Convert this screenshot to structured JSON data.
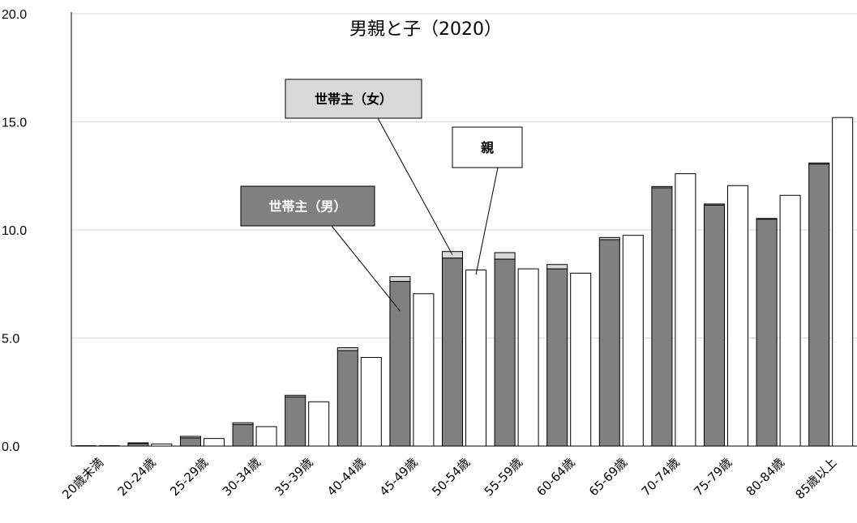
{
  "chart_data": {
    "type": "bar",
    "title": "男親と子（2020）",
    "xlabel": "",
    "ylabel": "",
    "ylim": [
      0,
      20
    ],
    "yticks": [
      "0.0",
      "5.0",
      "10.0",
      "15.0",
      "20.0"
    ],
    "grid": true,
    "categories": [
      "20歳未満",
      "20-24歳",
      "25-29歳",
      "30-34歳",
      "35-39歳",
      "40-44歳",
      "45-49歳",
      "50-54歳",
      "55-59歳",
      "60-64歳",
      "65-69歳",
      "70-74歳",
      "75-79歳",
      "80-84歳",
      "85歳以上"
    ],
    "series": [
      {
        "name": "世帯主（男）",
        "stack": "head",
        "color": "#808080",
        "values": [
          0.02,
          0.12,
          0.38,
          1.0,
          2.28,
          4.42,
          7.62,
          8.7,
          8.65,
          8.2,
          9.55,
          11.95,
          11.15,
          10.5,
          13.05
        ]
      },
      {
        "name": "世帯主（女）",
        "stack": "head",
        "color": "#d9d9d9",
        "values": [
          0.0,
          0.03,
          0.07,
          0.08,
          0.07,
          0.13,
          0.22,
          0.3,
          0.3,
          0.2,
          0.1,
          0.06,
          0.05,
          0.03,
          0.05
        ]
      },
      {
        "name": "親",
        "stack": "parent",
        "color": "#ffffff",
        "values": [
          0.02,
          0.1,
          0.35,
          0.9,
          2.05,
          4.1,
          7.05,
          8.15,
          8.2,
          8.0,
          9.75,
          12.6,
          12.05,
          11.6,
          15.2
        ]
      }
    ],
    "callouts": [
      {
        "label": "世帯主（女）",
        "series": "世帯主（女）",
        "category": "50-54歳"
      },
      {
        "label": "親",
        "series": "親",
        "category": "50-54歳"
      },
      {
        "label": "世帯主（男）",
        "series": "世帯主（男）",
        "category": "45-49歳"
      }
    ]
  }
}
